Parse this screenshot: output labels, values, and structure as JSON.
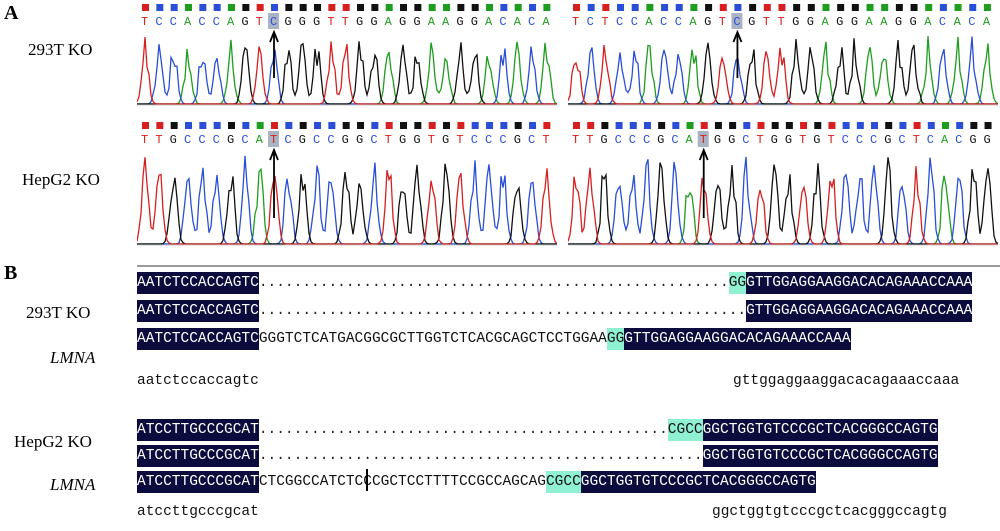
{
  "panelA": {
    "letter": "A",
    "rows": [
      {
        "label": "293T KO",
        "traces": [
          {
            "bases": "TCCACCAGTCGGGTTGGAGGAAGGACACA",
            "marked": 9
          },
          {
            "bases": "TCTCCACCAGTCGTTGGAGGAAGGACACA",
            "marked": 11
          }
        ]
      },
      {
        "label": "HepG2 KO",
        "traces": [
          {
            "bases": "TTGCCCGCATCGCCGGCTGGTGTCCCGCT",
            "marked": 9
          },
          {
            "bases": "TTGCCCGCATGGCTGGTGTCCCGCTCACGG",
            "marked": 9
          }
        ]
      }
    ],
    "base_colors": {
      "A": "#1e9e1e",
      "C": "#2a4fd6",
      "G": "#111111",
      "T": "#d62020"
    }
  },
  "panelB": {
    "letter": "B",
    "groups": [
      {
        "labels": [
          "293T KO",
          "",
          "LMNA"
        ],
        "rows": [
          [
            {
              "t": "AATCTCCACCAGTC",
              "s": "dark"
            },
            {
              "t": "......................................................",
              "s": "dots"
            },
            {
              "t": "GG",
              "s": "hl"
            },
            {
              "t": "GTTGGAGGAAGGACACAGAAACCAAA",
              "s": "dark"
            }
          ],
          [
            {
              "t": "AATCTCCACCAGTC",
              "s": "dark"
            },
            {
              "t": "........................................................",
              "s": "dots"
            },
            {
              "t": "GTTGGAGGAAGGACACAGAAACCAAA",
              "s": "dark"
            }
          ],
          [
            {
              "t": "AATCTCCACCAGTC",
              "s": "dark"
            },
            {
              "t": "GGGTCTCATGACGGCGCTTGGTCTCACGCAGCTCCTGGAA",
              "s": "plain"
            },
            {
              "t": "GG",
              "s": "hl"
            },
            {
              "t": "GTTGGAGGAAGGACACAGAAACCAAA",
              "s": "dark"
            }
          ]
        ],
        "consensus_left": "aatctccaccagtc",
        "consensus_right": "gttggaggaaggacacagaaaccaaa"
      },
      {
        "labels": [
          "",
          "HepG2 KO",
          "LMNA"
        ],
        "rows": [
          [
            {
              "t": "ATCCTTGCCCGCAT",
              "s": "dark"
            },
            {
              "t": "...............................................",
              "s": "dots"
            },
            {
              "t": "CGCC",
              "s": "hl"
            },
            {
              "t": "GGCTGGTGTCCCGCTCACGGGCCAGTG",
              "s": "dark"
            }
          ],
          [
            {
              "t": "ATCCTTGCCCGCAT",
              "s": "dark"
            },
            {
              "t": "...................................................",
              "s": "dots"
            },
            {
              "t": "GGCTGGTGTCCCGCTCACGGGCCAGTG",
              "s": "dark"
            }
          ],
          [
            {
              "t": "ATCCTTGCCCGCAT",
              "s": "dark"
            },
            {
              "t": "CTCGGCCATCTCCCGCTCCTTTTCCGCCAGCAG",
              "s": "plain"
            },
            {
              "t": "CGCC",
              "s": "hl"
            },
            {
              "t": "GGCTGGTGTCCCGCTCACGGGCCAGTG",
              "s": "dark"
            }
          ]
        ],
        "consensus_left": "atccttgcccgcat",
        "consensus_right": "ggctggtgtcccgctcacgggccagtg"
      }
    ]
  }
}
